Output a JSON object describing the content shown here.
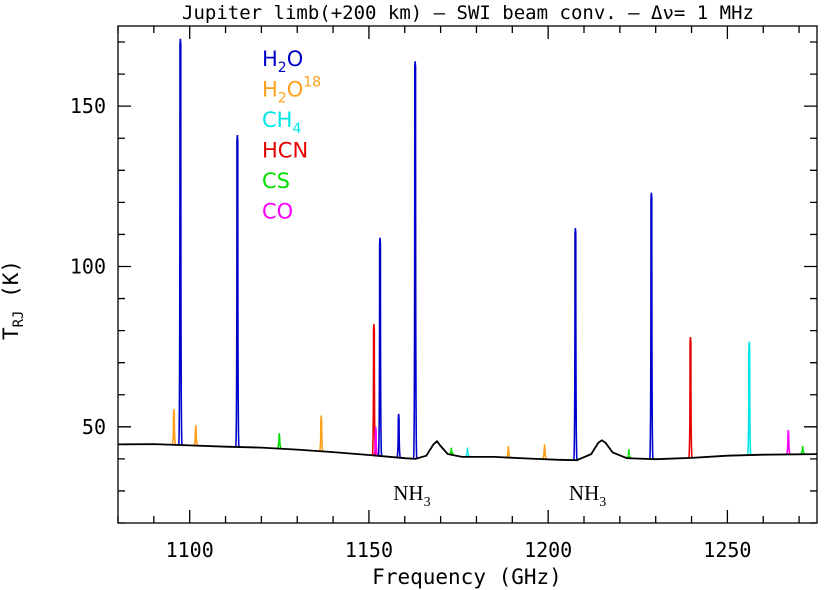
{
  "chart_data": {
    "type": "line",
    "title": "Jupiter limb(+200 km) – SWI beam conv. – Δν= 1 MHz",
    "xlabel": "Frequency (GHz)",
    "ylabel_main": "T",
    "ylabel_sub": "RJ",
    "ylabel_unit": " (K)",
    "xlim": [
      1080,
      1275
    ],
    "ylim": [
      20,
      175
    ],
    "xticks": [
      1100,
      1150,
      1200,
      1250
    ],
    "yticks": [
      50,
      100,
      150
    ],
    "legend": [
      {
        "base": "H",
        "sub": "2",
        "tail": "O",
        "sup": "",
        "color": "#0000cc"
      },
      {
        "base": "H",
        "sub": "2",
        "tail": "O",
        "sup": "18",
        "color": "#ff9f1a"
      },
      {
        "base": "CH",
        "sub": "4",
        "tail": "",
        "sup": "",
        "color": "#00e6e6"
      },
      {
        "base": "HCN",
        "sub": "",
        "tail": "",
        "sup": "",
        "color": "#e60000"
      },
      {
        "base": "CS",
        "sub": "",
        "tail": "",
        "sup": "",
        "color": "#00dd00"
      },
      {
        "base": "CO",
        "sub": "",
        "tail": "",
        "sup": "",
        "color": "#ff00ff"
      }
    ],
    "annotations": [
      {
        "base": "NH",
        "sub": "3",
        "x": 1162
      },
      {
        "base": "NH",
        "sub": "3",
        "x": 1211
      }
    ],
    "continuum": [
      [
        1080,
        44.5
      ],
      [
        1090,
        44.6
      ],
      [
        1100,
        44.2
      ],
      [
        1110,
        43.8
      ],
      [
        1120,
        43.5
      ],
      [
        1130,
        42.9
      ],
      [
        1140,
        42.1
      ],
      [
        1150,
        41.2
      ],
      [
        1160,
        40.2
      ],
      [
        1163,
        40.0
      ],
      [
        1166,
        41.0
      ],
      [
        1168,
        44.5
      ],
      [
        1169,
        45.5
      ],
      [
        1170,
        44.0
      ],
      [
        1172,
        41.5
      ],
      [
        1176,
        40.6
      ],
      [
        1185,
        40.6
      ],
      [
        1195,
        40.1
      ],
      [
        1203,
        39.7
      ],
      [
        1208,
        39.6
      ],
      [
        1212,
        41.5
      ],
      [
        1214,
        45.0
      ],
      [
        1215,
        45.8
      ],
      [
        1216,
        45.0
      ],
      [
        1218,
        42.0
      ],
      [
        1222,
        40.2
      ],
      [
        1230,
        39.9
      ],
      [
        1240,
        40.3
      ],
      [
        1250,
        41.0
      ],
      [
        1260,
        41.3
      ],
      [
        1275,
        41.5
      ]
    ],
    "lines": [
      {
        "species": "H2O",
        "x": 1097.4,
        "peak": 171
      },
      {
        "species": "H2O",
        "x": 1113.3,
        "peak": 141
      },
      {
        "species": "H2O",
        "x": 1153.1,
        "peak": 109
      },
      {
        "species": "H2O",
        "x": 1158.3,
        "peak": 54
      },
      {
        "species": "H2O",
        "x": 1162.9,
        "peak": 164
      },
      {
        "species": "H2O",
        "x": 1207.6,
        "peak": 112
      },
      {
        "species": "H2O",
        "x": 1228.8,
        "peak": 123
      },
      {
        "species": "H2O18",
        "x": 1095.6,
        "peak": 55.5
      },
      {
        "species": "H2O18",
        "x": 1101.7,
        "peak": 50.5
      },
      {
        "species": "H2O18",
        "x": 1136.7,
        "peak": 53.5
      },
      {
        "species": "H2O18",
        "x": 1188.9,
        "peak": 44
      },
      {
        "species": "H2O18",
        "x": 1199.0,
        "peak": 44.5
      },
      {
        "species": "CH4",
        "x": 1177.5,
        "peak": 43.5
      },
      {
        "species": "CH4",
        "x": 1256.1,
        "peak": 76.5
      },
      {
        "species": "HCN",
        "x": 1151.4,
        "peak": 82
      },
      {
        "species": "HCN",
        "x": 1239.7,
        "peak": 78
      },
      {
        "species": "CS",
        "x": 1125.0,
        "peak": 48
      },
      {
        "species": "CS",
        "x": 1173.0,
        "peak": 43.5
      },
      {
        "species": "CS",
        "x": 1222.5,
        "peak": 43
      },
      {
        "species": "CS",
        "x": 1271.0,
        "peak": 44
      },
      {
        "species": "CO",
        "x": 1151.9,
        "peak": 50
      },
      {
        "species": "CO",
        "x": 1267.0,
        "peak": 49
      }
    ]
  },
  "colors": {
    "H2O": "#0000cc",
    "H2O18": "#ff9f1a",
    "CH4": "#00e6e6",
    "HCN": "#e60000",
    "CS": "#00dd00",
    "CO": "#ff00ff",
    "continuum": "#000000"
  }
}
